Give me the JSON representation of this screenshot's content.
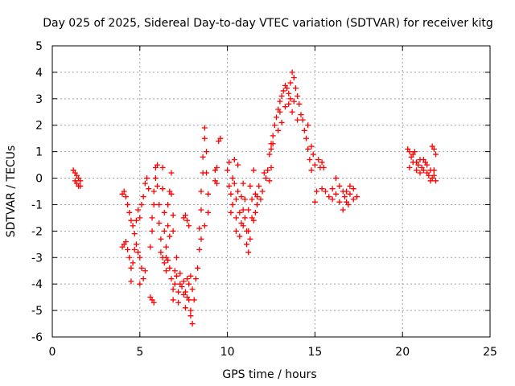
{
  "chart_data": {
    "type": "scatter",
    "title": "Day 025 of 2025, Sidereal Day-to-day VTEC variation (SDTVAR) for receiver kitg",
    "xlabel": "GPS time / hours",
    "ylabel": "SDTVAR / TECUs",
    "xlim": [
      0,
      25
    ],
    "ylim": [
      -6,
      5
    ],
    "xticks": [
      "0",
      "5",
      "10",
      "15",
      "20",
      "25"
    ],
    "yticks": [
      "5",
      "4",
      "3",
      "2",
      "1",
      "0",
      "-1",
      "-2",
      "-3",
      "-4",
      "-5",
      "-6"
    ],
    "grid": true,
    "marker": "+",
    "color": "#ff0000",
    "series": [
      {
        "points": [
          [
            1.2,
            0.3
          ],
          [
            1.3,
            0.2
          ],
          [
            1.3,
            -0.1
          ],
          [
            1.4,
            0.1
          ],
          [
            1.4,
            -0.2
          ],
          [
            1.5,
            -0.3
          ],
          [
            1.5,
            0.0
          ],
          [
            1.6,
            -0.1
          ],
          [
            1.6,
            -0.3
          ],
          [
            4.0,
            -0.6
          ],
          [
            4.1,
            -0.5
          ],
          [
            4.2,
            -0.7
          ],
          [
            4.3,
            -1.0
          ],
          [
            4.4,
            -1.3
          ],
          [
            4.5,
            -1.6
          ],
          [
            4.6,
            -1.8
          ],
          [
            4.7,
            -2.1
          ],
          [
            4.8,
            -1.6
          ],
          [
            4.9,
            -1.2
          ],
          [
            5.0,
            -1.5
          ],
          [
            5.1,
            -1.0
          ],
          [
            5.2,
            -0.7
          ],
          [
            5.3,
            -0.2
          ],
          [
            5.4,
            0.0
          ],
          [
            5.5,
            -0.4
          ],
          [
            4.0,
            -2.6
          ],
          [
            4.1,
            -2.5
          ],
          [
            4.2,
            -2.4
          ],
          [
            4.3,
            -2.7
          ],
          [
            4.4,
            -3.0
          ],
          [
            4.5,
            -3.4
          ],
          [
            4.5,
            -3.9
          ],
          [
            4.6,
            -3.2
          ],
          [
            4.7,
            -2.7
          ],
          [
            4.8,
            -2.5
          ],
          [
            4.9,
            -2.8
          ],
          [
            5.0,
            -3.0
          ],
          [
            5.1,
            -3.4
          ],
          [
            5.2,
            -3.8
          ],
          [
            5.0,
            -4.0
          ],
          [
            5.3,
            -3.5
          ],
          [
            5.6,
            -4.5
          ],
          [
            5.7,
            -4.6
          ],
          [
            5.8,
            -4.7
          ],
          [
            5.6,
            -2.6
          ],
          [
            5.7,
            -2.0
          ],
          [
            5.7,
            -1.5
          ],
          [
            5.8,
            -1.0
          ],
          [
            5.8,
            -0.5
          ],
          [
            5.9,
            0.0
          ],
          [
            5.9,
            0.4
          ],
          [
            6.0,
            0.5
          ],
          [
            6.0,
            -0.3
          ],
          [
            6.1,
            -1.0
          ],
          [
            6.1,
            -1.7
          ],
          [
            6.2,
            -2.3
          ],
          [
            6.2,
            -2.8
          ],
          [
            6.3,
            0.4
          ],
          [
            6.3,
            -0.4
          ],
          [
            6.4,
            -1.3
          ],
          [
            6.4,
            -2.0
          ],
          [
            6.5,
            -2.6
          ],
          [
            6.5,
            -3.0
          ],
          [
            6.6,
            -1.8
          ],
          [
            6.6,
            -1.0
          ],
          [
            6.7,
            -0.5
          ],
          [
            6.7,
            -2.2
          ],
          [
            6.8,
            0.2
          ],
          [
            6.8,
            -0.6
          ],
          [
            6.9,
            -1.4
          ],
          [
            6.9,
            -2.0
          ],
          [
            6.3,
            -3.0
          ],
          [
            6.4,
            -3.2
          ],
          [
            6.5,
            -3.5
          ],
          [
            6.6,
            -3.1
          ],
          [
            6.7,
            -3.4
          ],
          [
            6.8,
            -3.8
          ],
          [
            6.9,
            -4.2
          ],
          [
            6.9,
            -4.6
          ],
          [
            7.0,
            -4.0
          ],
          [
            7.0,
            -3.5
          ],
          [
            7.1,
            -3.0
          ],
          [
            7.1,
            -3.7
          ],
          [
            7.2,
            -4.3
          ],
          [
            7.2,
            -4.7
          ],
          [
            7.3,
            -4.0
          ],
          [
            7.3,
            -3.6
          ],
          [
            7.4,
            -4.1
          ],
          [
            7.5,
            -4.4
          ],
          [
            7.5,
            -3.9
          ],
          [
            7.6,
            -4.3
          ],
          [
            7.6,
            -4.9
          ],
          [
            7.7,
            -4.5
          ],
          [
            7.7,
            -3.8
          ],
          [
            7.8,
            -4.0
          ],
          [
            7.8,
            -4.6
          ],
          [
            7.9,
            -5.0
          ],
          [
            7.9,
            -5.2
          ],
          [
            8.0,
            -5.5
          ],
          [
            8.0,
            -4.2
          ],
          [
            7.9,
            -3.7
          ],
          [
            8.1,
            -4.6
          ],
          [
            7.5,
            -1.5
          ],
          [
            7.6,
            -1.4
          ],
          [
            7.7,
            -1.6
          ],
          [
            7.8,
            -1.8
          ],
          [
            8.2,
            -3.8
          ],
          [
            8.3,
            -3.4
          ],
          [
            8.4,
            -2.7
          ],
          [
            8.4,
            -1.9
          ],
          [
            8.5,
            -1.2
          ],
          [
            8.5,
            -0.5
          ],
          [
            8.6,
            0.2
          ],
          [
            8.6,
            0.8
          ],
          [
            8.7,
            1.5
          ],
          [
            8.7,
            1.9
          ],
          [
            8.8,
            1.0
          ],
          [
            8.8,
            0.2
          ],
          [
            8.9,
            -0.6
          ],
          [
            8.9,
            -1.3
          ],
          [
            8.5,
            -2.3
          ],
          [
            8.7,
            -1.8
          ],
          [
            9.3,
            0.3
          ],
          [
            9.3,
            -0.1
          ],
          [
            9.4,
            0.4
          ],
          [
            9.4,
            -0.2
          ],
          [
            9.5,
            1.4
          ],
          [
            9.6,
            1.5
          ],
          [
            10.0,
            0.3
          ],
          [
            10.1,
            0.6
          ],
          [
            10.1,
            -0.3
          ],
          [
            10.2,
            -0.6
          ],
          [
            10.3,
            0.0
          ],
          [
            10.3,
            -1.0
          ],
          [
            10.4,
            0.7
          ],
          [
            10.4,
            -0.2
          ],
          [
            10.5,
            -0.8
          ],
          [
            10.5,
            -1.5
          ],
          [
            10.6,
            0.5
          ],
          [
            10.6,
            -0.5
          ],
          [
            10.7,
            -1.3
          ],
          [
            10.7,
            -2.2
          ],
          [
            10.8,
            -0.7
          ],
          [
            10.8,
            -1.7
          ],
          [
            10.9,
            -0.2
          ],
          [
            10.9,
            -1.2
          ],
          [
            11.0,
            -1.5
          ],
          [
            11.0,
            -0.8
          ],
          [
            11.1,
            -2.0
          ],
          [
            11.1,
            -2.5
          ],
          [
            11.2,
            -1.2
          ],
          [
            11.2,
            -2.8
          ],
          [
            11.3,
            -0.3
          ],
          [
            11.3,
            -2.3
          ],
          [
            11.4,
            -1.5
          ],
          [
            11.4,
            -0.8
          ],
          [
            11.5,
            0.3
          ],
          [
            11.6,
            -0.6
          ],
          [
            11.6,
            -1.3
          ],
          [
            11.7,
            -0.7
          ],
          [
            11.8,
            -0.3
          ],
          [
            11.9,
            -0.8
          ],
          [
            12.0,
            -0.5
          ],
          [
            12.1,
            0.2
          ],
          [
            12.2,
            0.0
          ],
          [
            12.3,
            0.3
          ],
          [
            12.4,
            -0.1
          ],
          [
            12.5,
            0.4
          ],
          [
            10.2,
            -1.3
          ],
          [
            10.5,
            -2.0
          ],
          [
            10.9,
            -1.8
          ],
          [
            11.2,
            -2.0
          ],
          [
            11.5,
            -1.6
          ],
          [
            11.7,
            -1.0
          ],
          [
            12.4,
            0.9
          ],
          [
            12.5,
            1.3
          ],
          [
            12.6,
            1.6
          ],
          [
            12.7,
            2.0
          ],
          [
            12.8,
            2.3
          ],
          [
            12.9,
            2.6
          ],
          [
            13.0,
            2.9
          ],
          [
            13.1,
            3.1
          ],
          [
            13.2,
            3.3
          ],
          [
            13.3,
            3.5
          ],
          [
            13.4,
            3.4
          ],
          [
            13.5,
            3.2
          ],
          [
            13.6,
            3.6
          ],
          [
            13.7,
            4.0
          ],
          [
            13.8,
            3.8
          ],
          [
            13.9,
            3.4
          ],
          [
            14.0,
            3.1
          ],
          [
            14.1,
            2.8
          ],
          [
            14.2,
            2.4
          ],
          [
            13.5,
            2.8
          ],
          [
            13.7,
            2.5
          ],
          [
            13.8,
            2.9
          ],
          [
            13.3,
            2.7
          ],
          [
            13.1,
            2.1
          ],
          [
            12.9,
            1.8
          ],
          [
            12.6,
            1.3
          ],
          [
            12.5,
            1.1
          ],
          [
            13.0,
            2.5
          ],
          [
            13.6,
            3.0
          ],
          [
            14.0,
            2.2
          ],
          [
            14.3,
            2.2
          ],
          [
            14.4,
            1.8
          ],
          [
            14.5,
            1.5
          ],
          [
            14.6,
            1.1
          ],
          [
            14.7,
            0.7
          ],
          [
            14.8,
            0.3
          ],
          [
            14.6,
            2.0
          ],
          [
            14.8,
            1.2
          ],
          [
            14.9,
            0.9
          ],
          [
            15.0,
            0.5
          ],
          [
            15.0,
            -0.9
          ],
          [
            15.2,
            0.7
          ],
          [
            15.3,
            0.4
          ],
          [
            15.4,
            0.6
          ],
          [
            15.5,
            0.4
          ],
          [
            15.1,
            -0.5
          ],
          [
            15.4,
            -0.4
          ],
          [
            15.6,
            -0.5
          ],
          [
            15.8,
            -0.7
          ],
          [
            16.0,
            -0.4
          ],
          [
            16.2,
            -0.6
          ],
          [
            16.4,
            -0.9
          ],
          [
            16.6,
            -1.2
          ],
          [
            16.7,
            -0.7
          ],
          [
            16.8,
            -0.5
          ],
          [
            17.0,
            -0.6
          ],
          [
            17.2,
            -0.8
          ],
          [
            17.4,
            -0.7
          ],
          [
            16.2,
            0.0
          ],
          [
            16.4,
            -0.3
          ],
          [
            16.6,
            -0.5
          ],
          [
            16.8,
            -0.9
          ],
          [
            17.0,
            -0.3
          ],
          [
            17.2,
            -0.4
          ],
          [
            16.0,
            -0.8
          ],
          [
            16.9,
            -1.0
          ],
          [
            20.3,
            1.1
          ],
          [
            20.4,
            1.0
          ],
          [
            20.5,
            0.8
          ],
          [
            20.6,
            0.9
          ],
          [
            20.7,
            1.0
          ],
          [
            20.8,
            0.6
          ],
          [
            20.9,
            0.5
          ],
          [
            21.0,
            0.7
          ],
          [
            21.1,
            0.4
          ],
          [
            21.2,
            0.3
          ],
          [
            21.3,
            0.6
          ],
          [
            21.4,
            0.2
          ],
          [
            21.5,
            0.1
          ],
          [
            21.6,
            -0.1
          ],
          [
            21.7,
            0.0
          ],
          [
            21.8,
            0.1
          ],
          [
            21.9,
            -0.1
          ],
          [
            20.4,
            0.4
          ],
          [
            20.6,
            0.6
          ],
          [
            20.8,
            0.3
          ],
          [
            21.0,
            0.2
          ],
          [
            21.2,
            0.7
          ],
          [
            21.4,
            0.5
          ],
          [
            21.6,
            0.3
          ],
          [
            21.7,
            1.2
          ],
          [
            21.8,
            1.1
          ],
          [
            21.9,
            0.9
          ],
          [
            21.8,
            0.3
          ]
        ]
      }
    ]
  }
}
